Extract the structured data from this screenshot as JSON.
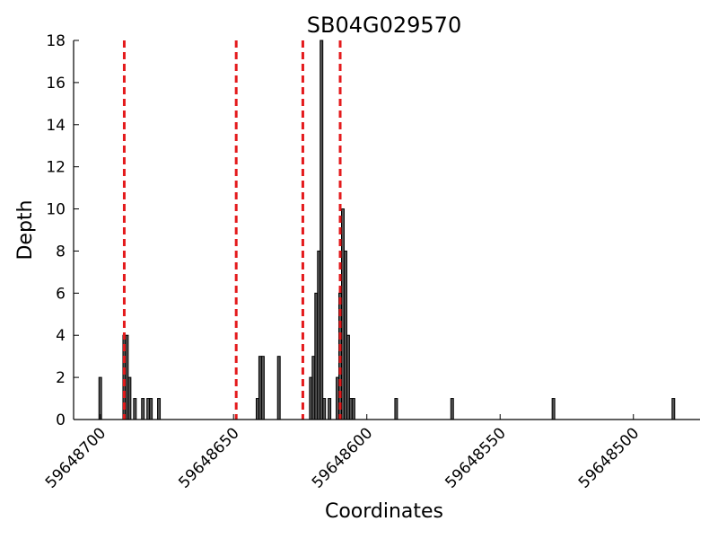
{
  "chart_data": {
    "type": "bar",
    "title": "SB04G029570",
    "xlabel": "Coordinates",
    "ylabel": "Depth",
    "xlim": [
      59648710,
      59648475
    ],
    "ylim": [
      0,
      18
    ],
    "x_reversed": true,
    "grid": false,
    "bar_width": 1,
    "bar_color": "#555555",
    "y_ticks": [
      0,
      2,
      4,
      6,
      8,
      10,
      12,
      14,
      16,
      18
    ],
    "x_ticks": [
      59648700,
      59648650,
      59648600,
      59648550,
      59648500
    ],
    "x_tick_labels": [
      "59648700",
      "59648650",
      "59648600",
      "59648550",
      "59648500"
    ],
    "x": [
      59648700,
      59648691,
      59648690,
      59648689,
      59648687,
      59648684,
      59648682,
      59648681,
      59648678,
      59648641,
      59648640,
      59648639,
      59648633,
      59648621,
      59648620,
      59648619,
      59648618,
      59648617,
      59648616,
      59648614,
      59648611,
      59648610,
      59648609,
      59648608,
      59648607,
      59648606,
      59648605,
      59648589,
      59648568,
      59648530,
      59648485
    ],
    "values": [
      2,
      4,
      4,
      2,
      1,
      1,
      1,
      1,
      1,
      1,
      3,
      3,
      3,
      2,
      3,
      6,
      8,
      18,
      1,
      1,
      2,
      6,
      10,
      8,
      4,
      1,
      1,
      1,
      1,
      1,
      1
    ],
    "reference_lines": {
      "color": "#e41a1c",
      "style": "dashed",
      "x": [
        59648691,
        59648649,
        59648624,
        59648610
      ]
    }
  }
}
